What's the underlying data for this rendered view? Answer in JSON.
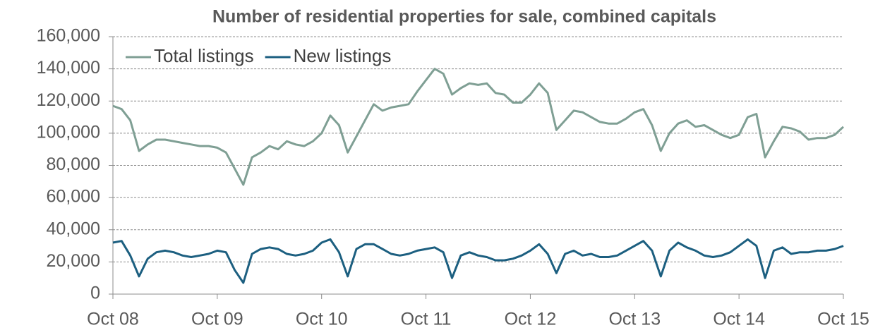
{
  "chart_data": {
    "type": "line",
    "title": "Number of residential properties for sale, combined capitals",
    "categories": [
      "Oct 08",
      null,
      null,
      null,
      null,
      null,
      null,
      null,
      null,
      null,
      null,
      null,
      "Oct 09",
      null,
      null,
      null,
      null,
      null,
      null,
      null,
      null,
      null,
      null,
      null,
      "Oct 10",
      null,
      null,
      null,
      null,
      null,
      null,
      null,
      null,
      null,
      null,
      null,
      "Oct 11",
      null,
      null,
      null,
      null,
      null,
      null,
      null,
      null,
      null,
      null,
      null,
      "Oct 12",
      null,
      null,
      null,
      null,
      null,
      null,
      null,
      null,
      null,
      null,
      null,
      "Oct 13",
      null,
      null,
      null,
      null,
      null,
      null,
      null,
      null,
      null,
      null,
      null,
      "Oct 14",
      null,
      null,
      null,
      null,
      null,
      null,
      null,
      null,
      null,
      null,
      null,
      "Oct 15"
    ],
    "series": [
      {
        "name": "Total listings",
        "color": "#7f9f94",
        "values": [
          117000,
          115000,
          108000,
          89000,
          93000,
          96000,
          96000,
          95000,
          94000,
          93000,
          92000,
          92000,
          91000,
          88000,
          78000,
          68000,
          85000,
          88000,
          92000,
          90000,
          95000,
          93000,
          92000,
          95000,
          100000,
          111000,
          105000,
          88000,
          98000,
          108000,
          118000,
          114000,
          116000,
          117000,
          118000,
          126000,
          133000,
          140000,
          137000,
          124000,
          128000,
          131000,
          130000,
          131000,
          125000,
          124000,
          119000,
          119000,
          124000,
          131000,
          125000,
          102000,
          108000,
          114000,
          113000,
          110000,
          107000,
          106000,
          106000,
          109000,
          113000,
          115000,
          105000,
          89000,
          100000,
          106000,
          108000,
          104000,
          105000,
          102000,
          99000,
          97000,
          99000,
          110000,
          112000,
          85000,
          95000,
          104000,
          103000,
          101000,
          96000,
          97000,
          97000,
          99000,
          104000
        ]
      },
      {
        "name": "New listings",
        "color": "#1c5f80",
        "values": [
          32000,
          33000,
          24000,
          11000,
          22000,
          26000,
          27000,
          26000,
          24000,
          23000,
          24000,
          25000,
          27000,
          26000,
          15000,
          7000,
          25000,
          28000,
          29000,
          28000,
          25000,
          24000,
          25000,
          27000,
          32000,
          34000,
          26000,
          11000,
          28000,
          31000,
          31000,
          28000,
          25000,
          24000,
          25000,
          27000,
          28000,
          29000,
          26000,
          10000,
          24000,
          26000,
          24000,
          23000,
          21000,
          21000,
          22000,
          24000,
          27000,
          31000,
          25000,
          13000,
          25000,
          27000,
          24000,
          25000,
          23000,
          23000,
          24000,
          27000,
          30000,
          33000,
          27000,
          11000,
          27000,
          32000,
          29000,
          27000,
          24000,
          23000,
          24000,
          26000,
          30000,
          34000,
          30000,
          10000,
          27000,
          29000,
          25000,
          26000,
          26000,
          27000,
          27000,
          28000,
          30000
        ]
      }
    ],
    "ylim": [
      0,
      160000
    ],
    "yticks": [
      0,
      {
        "value": 20000,
        "label": "20,000"
      },
      {
        "value": 40000,
        "label": "40,000"
      },
      {
        "value": 60000,
        "label": "60,000"
      },
      {
        "value": 80000,
        "label": "80,000"
      },
      {
        "value": 100000,
        "label": "100,000"
      },
      {
        "value": 120000,
        "label": "120,000"
      },
      {
        "value": 140000,
        "label": "140,000"
      },
      {
        "value": 160000,
        "label": "160,000"
      }
    ],
    "grid": true,
    "legend": "top-left"
  }
}
